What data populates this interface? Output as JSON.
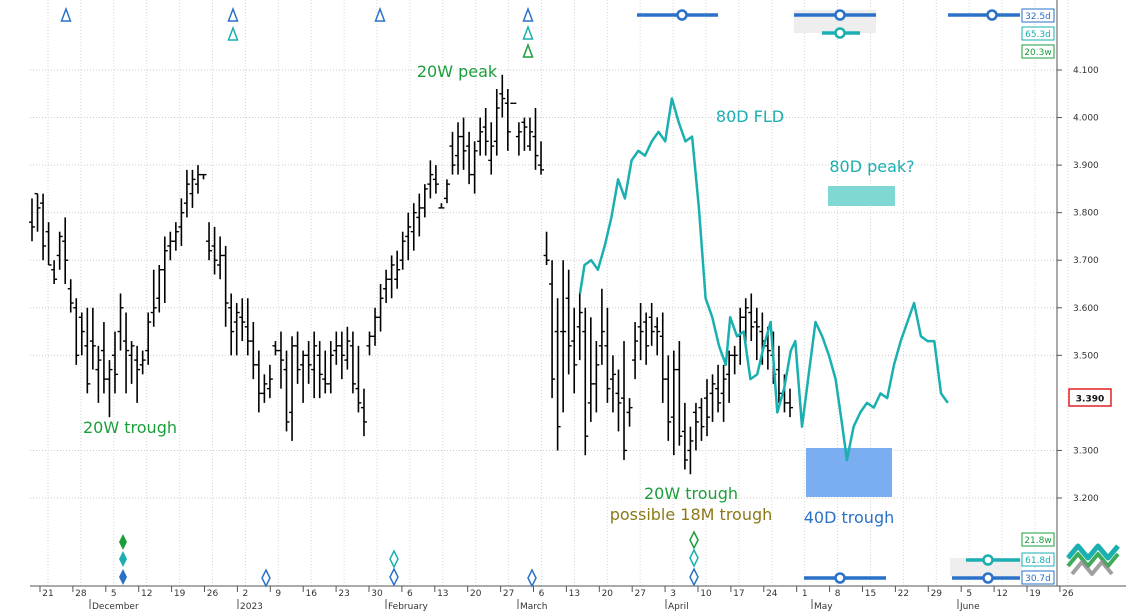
{
  "chart_data": {
    "type": "ohlc",
    "y_axis": {
      "ticks": [
        "4.100",
        "4.000",
        "3.900",
        "3.800",
        "3.700",
        "3.600",
        "3.500",
        "3.300",
        "3.200"
      ],
      "tick_values": [
        4.1,
        4.0,
        3.9,
        3.8,
        3.7,
        3.6,
        3.5,
        3.3,
        3.2
      ],
      "range": [
        3.14,
        4.22
      ],
      "last_price_label": "3.390",
      "last_price": 3.39
    },
    "x_axis": {
      "day_ticks": [
        "21",
        "28",
        "5",
        "12",
        "19",
        "26",
        "2",
        "9",
        "16",
        "23",
        "30",
        "6",
        "13",
        "20",
        "27",
        "6",
        "13",
        "20",
        "27",
        "3",
        "10",
        "17",
        "24",
        "1",
        "8",
        "15",
        "22",
        "29",
        "5",
        "12",
        "19",
        "26"
      ],
      "month_labels": [
        "December",
        "2023",
        "February",
        "March",
        "April",
        "May",
        "June"
      ]
    },
    "price_bars": [
      [
        3.78,
        3.83,
        3.74,
        3.77
      ],
      [
        3.84,
        3.84,
        3.76,
        3.81
      ],
      [
        3.82,
        3.84,
        3.7,
        3.73
      ],
      [
        3.76,
        3.78,
        3.69,
        3.69
      ],
      [
        3.68,
        3.7,
        3.65,
        3.66
      ],
      [
        3.71,
        3.76,
        3.68,
        3.75
      ],
      [
        3.74,
        3.79,
        3.65,
        3.7
      ],
      [
        3.64,
        3.66,
        3.59,
        3.61
      ],
      [
        3.6,
        3.62,
        3.48,
        3.5
      ],
      [
        3.58,
        3.59,
        3.5,
        3.55
      ],
      [
        3.52,
        3.6,
        3.42,
        3.44
      ],
      [
        3.53,
        3.6,
        3.47,
        3.52
      ],
      [
        3.47,
        3.52,
        3.4,
        3.49
      ],
      [
        3.51,
        3.57,
        3.42,
        3.45
      ],
      [
        3.45,
        3.49,
        3.37,
        3.47
      ],
      [
        3.5,
        3.55,
        3.42,
        3.46
      ],
      [
        3.55,
        3.63,
        3.51,
        3.6
      ],
      [
        3.53,
        3.59,
        3.42,
        3.51
      ],
      [
        3.5,
        3.53,
        3.44,
        3.52
      ],
      [
        3.49,
        3.52,
        3.4,
        3.47
      ],
      [
        3.48,
        3.51,
        3.46,
        3.49
      ],
      [
        3.51,
        3.59,
        3.48,
        3.57
      ],
      [
        3.59,
        3.68,
        3.56,
        3.6
      ],
      [
        3.62,
        3.69,
        3.59,
        3.68
      ],
      [
        3.68,
        3.75,
        3.61,
        3.72
      ],
      [
        3.73,
        3.76,
        3.7,
        3.74
      ],
      [
        3.74,
        3.78,
        3.72,
        3.76
      ],
      [
        3.77,
        3.83,
        3.73,
        3.8
      ],
      [
        3.82,
        3.89,
        3.79,
        3.86
      ],
      [
        3.84,
        3.89,
        3.81,
        3.87
      ],
      [
        3.86,
        3.9,
        3.84,
        3.88
      ],
      [
        3.88,
        3.88,
        3.87,
        3.88
      ],
      [
        3.74,
        3.78,
        3.7,
        3.72
      ],
      [
        3.73,
        3.77,
        3.67,
        3.7
      ],
      [
        3.69,
        3.75,
        3.66,
        3.71
      ],
      [
        3.71,
        3.73,
        3.56,
        3.61
      ],
      [
        3.6,
        3.63,
        3.5,
        3.55
      ],
      [
        3.57,
        3.61,
        3.5,
        3.59
      ],
      [
        3.58,
        3.62,
        3.53,
        3.57
      ],
      [
        3.56,
        3.62,
        3.5,
        3.53
      ],
      [
        3.53,
        3.57,
        3.45,
        3.48
      ],
      [
        3.48,
        3.51,
        3.38,
        3.42
      ],
      [
        3.42,
        3.46,
        3.4,
        3.44
      ],
      [
        3.43,
        3.48,
        3.41,
        3.45
      ],
      [
        3.52,
        3.53,
        3.5,
        3.51
      ],
      [
        3.51,
        3.55,
        3.43,
        3.49
      ],
      [
        3.47,
        3.51,
        3.34,
        3.36
      ],
      [
        3.38,
        3.54,
        3.32,
        3.52
      ],
      [
        3.52,
        3.55,
        3.44,
        3.47
      ],
      [
        3.48,
        3.51,
        3.4,
        3.5
      ],
      [
        3.5,
        3.53,
        3.44,
        3.48
      ],
      [
        3.47,
        3.55,
        3.41,
        3.52
      ],
      [
        3.5,
        3.53,
        3.41,
        3.46
      ],
      [
        3.45,
        3.51,
        3.42,
        3.44
      ],
      [
        3.44,
        3.53,
        3.42,
        3.5
      ],
      [
        3.51,
        3.55,
        3.48,
        3.52
      ],
      [
        3.52,
        3.55,
        3.45,
        3.5
      ],
      [
        3.49,
        3.56,
        3.47,
        3.53
      ],
      [
        3.52,
        3.55,
        3.42,
        3.44
      ],
      [
        3.43,
        3.52,
        3.38,
        3.4
      ],
      [
        3.39,
        3.43,
        3.33,
        3.36
      ],
      [
        3.52,
        3.55,
        3.5,
        3.54
      ],
      [
        3.54,
        3.6,
        3.52,
        3.58
      ],
      [
        3.58,
        3.65,
        3.55,
        3.62
      ],
      [
        3.64,
        3.68,
        3.61,
        3.66
      ],
      [
        3.66,
        3.71,
        3.62,
        3.69
      ],
      [
        3.66,
        3.72,
        3.64,
        3.68
      ],
      [
        3.7,
        3.76,
        3.68,
        3.74
      ],
      [
        3.75,
        3.8,
        3.7,
        3.77
      ],
      [
        3.76,
        3.82,
        3.72,
        3.8
      ],
      [
        3.79,
        3.84,
        3.75,
        3.81
      ],
      [
        3.81,
        3.86,
        3.79,
        3.85
      ],
      [
        3.86,
        3.91,
        3.83,
        3.88
      ],
      [
        3.87,
        3.9,
        3.84,
        3.86
      ],
      [
        3.81,
        3.82,
        3.81,
        3.81
      ],
      [
        3.83,
        3.87,
        3.82,
        3.86
      ],
      [
        3.94,
        3.97,
        3.88,
        3.9
      ],
      [
        3.92,
        3.99,
        3.88,
        3.96
      ],
      [
        3.96,
        4.0,
        3.89,
        3.93
      ],
      [
        3.94,
        3.97,
        3.86,
        3.88
      ],
      [
        3.88,
        3.95,
        3.84,
        3.93
      ],
      [
        3.95,
        4.0,
        3.92,
        3.97
      ],
      [
        3.98,
        4.02,
        3.92,
        3.95
      ],
      [
        3.91,
        3.99,
        3.88,
        3.94
      ],
      [
        3.95,
        4.06,
        3.92,
        4.02
      ],
      [
        4.05,
        4.09,
        4.0,
        4.04
      ],
      [
        4.03,
        4.06,
        3.93,
        3.97
      ],
      [
        4.03,
        4.03,
        4.03,
        4.03
      ],
      [
        3.96,
        3.99,
        3.92,
        3.97
      ],
      [
        3.99,
        4.0,
        3.93,
        3.98
      ],
      [
        3.94,
        4.0,
        3.93,
        3.97
      ],
      [
        3.96,
        4.02,
        3.89,
        3.92
      ],
      [
        3.9,
        3.95,
        3.88,
        3.89
      ],
      [
        3.71,
        3.76,
        3.69,
        3.7
      ],
      [
        3.65,
        3.7,
        3.41,
        3.45
      ],
      [
        3.55,
        3.62,
        3.3,
        3.35
      ],
      [
        3.55,
        3.7,
        3.38,
        3.55
      ],
      [
        3.62,
        3.68,
        3.46,
        3.52
      ],
      [
        3.53,
        3.6,
        3.42,
        3.48
      ],
      [
        3.56,
        3.63,
        3.49,
        3.59
      ],
      [
        3.55,
        3.6,
        3.29,
        3.33
      ],
      [
        3.4,
        3.58,
        3.36,
        3.44
      ],
      [
        3.44,
        3.53,
        3.38,
        3.48
      ],
      [
        3.52,
        3.64,
        3.48,
        3.55
      ],
      [
        3.52,
        3.6,
        3.4,
        3.43
      ],
      [
        3.45,
        3.5,
        3.38,
        3.46
      ],
      [
        3.42,
        3.47,
        3.34,
        3.4
      ],
      [
        3.41,
        3.53,
        3.28,
        3.3
      ],
      [
        3.38,
        3.41,
        3.35,
        3.39
      ],
      [
        3.49,
        3.57,
        3.45,
        3.53
      ],
      [
        3.56,
        3.61,
        3.49,
        3.55
      ],
      [
        3.57,
        3.59,
        3.48,
        3.52
      ],
      [
        3.58,
        3.61,
        3.52,
        3.55
      ],
      [
        3.56,
        3.58,
        3.5,
        3.55
      ],
      [
        3.54,
        3.59,
        3.4,
        3.45
      ],
      [
        3.45,
        3.5,
        3.32,
        3.36
      ],
      [
        3.37,
        3.51,
        3.29,
        3.47
      ],
      [
        3.47,
        3.53,
        3.31,
        3.33
      ],
      [
        3.34,
        3.4,
        3.26,
        3.28
      ],
      [
        3.3,
        3.35,
        3.25,
        3.32
      ],
      [
        3.38,
        3.4,
        3.3,
        3.36
      ],
      [
        3.39,
        3.41,
        3.32,
        3.35
      ],
      [
        3.41,
        3.45,
        3.33,
        3.37
      ],
      [
        3.42,
        3.46,
        3.36,
        3.44
      ],
      [
        3.43,
        3.48,
        3.38,
        3.4
      ],
      [
        3.42,
        3.48,
        3.36,
        3.45
      ],
      [
        3.46,
        3.51,
        3.4,
        3.5
      ],
      [
        3.5,
        3.52,
        3.46,
        3.5
      ],
      [
        3.54,
        3.6,
        3.48,
        3.58
      ],
      [
        3.58,
        3.62,
        3.52,
        3.6
      ],
      [
        3.59,
        3.63,
        3.53,
        3.56
      ],
      [
        3.57,
        3.6,
        3.49,
        3.56
      ],
      [
        3.55,
        3.59,
        3.48,
        3.53
      ],
      [
        3.52,
        3.56,
        3.47,
        3.51
      ],
      [
        3.5,
        3.55,
        3.44,
        3.46
      ],
      [
        3.47,
        3.52,
        3.4,
        3.42
      ],
      [
        3.42,
        3.46,
        3.38,
        3.4
      ],
      [
        3.4,
        3.43,
        3.37,
        3.39
      ]
    ],
    "fld_series": {
      "name": "80D FLD",
      "color": "#1aafb0",
      "points": [
        [
          0.0,
          3.63
        ],
        [
          1.0,
          3.69
        ],
        [
          2.5,
          3.7
        ],
        [
          4.0,
          3.68
        ],
        [
          5.5,
          3.73
        ],
        [
          7.0,
          3.79
        ],
        [
          8.5,
          3.87
        ],
        [
          10.0,
          3.83
        ],
        [
          11.5,
          3.91
        ],
        [
          13.0,
          3.93
        ],
        [
          14.5,
          3.92
        ],
        [
          16.0,
          3.95
        ],
        [
          17.5,
          3.97
        ],
        [
          19.0,
          3.95
        ],
        [
          20.5,
          4.04
        ],
        [
          22.0,
          3.99
        ],
        [
          23.5,
          3.95
        ],
        [
          25.0,
          3.96
        ],
        [
          26.5,
          3.81
        ],
        [
          28.0,
          3.62
        ],
        [
          29.5,
          3.58
        ],
        [
          31.0,
          3.52
        ],
        [
          32.5,
          3.48
        ],
        [
          33.5,
          3.58
        ],
        [
          35.0,
          3.54
        ],
        [
          36.5,
          3.55
        ],
        [
          38.0,
          3.45
        ],
        [
          39.5,
          3.46
        ],
        [
          41.0,
          3.52
        ],
        [
          42.5,
          3.57
        ],
        [
          44.0,
          3.38
        ],
        [
          45.5,
          3.43
        ],
        [
          47.0,
          3.51
        ],
        [
          48.0,
          3.53
        ],
        [
          49.5,
          3.35
        ],
        [
          51.0,
          3.46
        ],
        [
          52.5,
          3.57
        ],
        [
          54.0,
          3.54
        ],
        [
          55.5,
          3.5
        ],
        [
          57.0,
          3.45
        ],
        [
          58.5,
          3.35
        ],
        [
          59.5,
          3.28
        ],
        [
          61.0,
          3.35
        ],
        [
          62.5,
          3.38
        ],
        [
          64.0,
          3.4
        ],
        [
          65.5,
          3.39
        ],
        [
          67.0,
          3.42
        ],
        [
          68.5,
          3.41
        ],
        [
          70.0,
          3.48
        ],
        [
          71.5,
          3.53
        ],
        [
          73.0,
          3.57
        ],
        [
          74.5,
          3.61
        ],
        [
          76.0,
          3.54
        ],
        [
          77.5,
          3.53
        ],
        [
          79.0,
          3.53
        ],
        [
          80.5,
          3.42
        ],
        [
          82.0,
          3.4
        ]
      ]
    },
    "annotations": [
      {
        "text": "20W peak",
        "color": "#1b9e3c"
      },
      {
        "text": "80D FLD",
        "color": "#1aafb0"
      },
      {
        "text": "80D peak?",
        "color": "#1aafb0"
      },
      {
        "text": "20W trough",
        "color": "#1b9e3c"
      },
      {
        "text": "20W trough",
        "color": "#1b9e3c"
      },
      {
        "text": "possible 18M trough",
        "color": "#8a7a17"
      },
      {
        "text": "40D trough",
        "color": "#2a72c8"
      }
    ],
    "target_boxes": [
      {
        "label": "80D peak?",
        "color": "#7fd8d3",
        "y_range": [
          3.79,
          3.83
        ]
      },
      {
        "label": "40D trough",
        "color": "#7aaef0",
        "y_range": [
          3.21,
          3.3
        ]
      }
    ],
    "cycle_badges": [
      {
        "text": "32.5d",
        "color": "#2a72c8"
      },
      {
        "text": "65.3d",
        "color": "#1aafb0"
      },
      {
        "text": "20.3w",
        "color": "#1b9e3c"
      },
      {
        "text": "21.8w",
        "color": "#1b9e3c"
      },
      {
        "text": "61.8d",
        "color": "#1aafb0"
      },
      {
        "text": "30.7d",
        "color": "#2a72c8"
      }
    ],
    "colors": {
      "bars": "#000000",
      "blue": "#2a72c8",
      "teal": "#1aafb0",
      "green": "#1b9e3c",
      "price_box": "#e02020"
    }
  }
}
